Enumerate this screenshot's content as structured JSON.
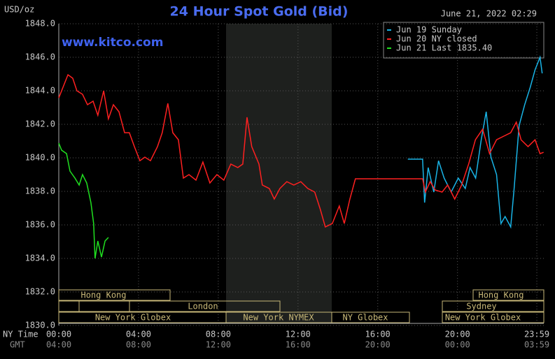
{
  "chart_data": {
    "type": "line",
    "title": "24 Hour Spot Gold (Bid)",
    "y_label": "USD/oz",
    "timestamp": "June 21, 2022 02:29",
    "watermark": "www.kitco.com",
    "x_label": "NY Time",
    "x2_label": "GMT",
    "xlim": [
      0,
      24.33
    ],
    "ylim": [
      1830,
      1848
    ],
    "yticks": [
      {
        "value": 1830,
        "label": "1830.0"
      },
      {
        "value": 1832,
        "label": "1832.0"
      },
      {
        "value": 1834,
        "label": "1834.0"
      },
      {
        "value": 1836,
        "label": "1836.0"
      },
      {
        "value": 1838,
        "label": "1838.0"
      },
      {
        "value": 1840,
        "label": "1840.0"
      },
      {
        "value": 1842,
        "label": "1842.0"
      },
      {
        "value": 1844,
        "label": "1844.0"
      },
      {
        "value": 1846,
        "label": "1846.0"
      },
      {
        "value": 1848,
        "label": "1848.0"
      }
    ],
    "xticks": [
      {
        "value": 0,
        "label": "00:00"
      },
      {
        "value": 4,
        "label": "04:00"
      },
      {
        "value": 8,
        "label": "08:00"
      },
      {
        "value": 12,
        "label": "12:00"
      },
      {
        "value": 16,
        "label": "16:00"
      },
      {
        "value": 20,
        "label": "20:00"
      },
      {
        "value": 23.98,
        "label": "23:59"
      }
    ],
    "x2tick_labels": [
      "04:00",
      "08:00",
      "12:00",
      "16:00",
      "20:00",
      "00:00",
      "03:59"
    ],
    "grid": true,
    "legend": "top-right",
    "sessions": [
      "Hong Kong",
      "London",
      "New York Globex",
      "New York NYMEX",
      "NY Globex",
      "Hong Kong",
      "Sydney",
      "New York Globex"
    ],
    "series": [
      {
        "name": "Jun 19 Sunday",
        "color": "#19b4e6",
        "x": [
          17.51,
          18.25,
          18.35,
          18.53,
          18.81,
          19.05,
          19.33,
          19.68,
          20.04,
          20.39,
          20.63,
          20.91,
          21.19,
          21.44,
          21.68,
          21.96,
          22.18,
          22.39,
          22.67,
          22.84,
          23.09,
          23.37,
          23.65,
          23.89,
          24.14,
          24.25
        ],
        "values": [
          1839.92,
          1839.92,
          1837.33,
          1839.42,
          1837.96,
          1839.83,
          1838.79,
          1837.96,
          1838.79,
          1838.17,
          1839.42,
          1838.79,
          1841.08,
          1842.75,
          1840.04,
          1839.0,
          1836.08,
          1836.5,
          1835.88,
          1838.17,
          1841.92,
          1843.17,
          1844.21,
          1845.25,
          1846.0,
          1845.04
        ]
      },
      {
        "name": "Jun 20 NY closed",
        "color": "#ff2020",
        "x": [
          0,
          0.21,
          0.46,
          0.7,
          0.91,
          1.19,
          1.44,
          1.72,
          1.96,
          2.25,
          2.49,
          2.74,
          3.02,
          3.3,
          3.54,
          3.79,
          4.07,
          4.32,
          4.6,
          4.95,
          5.19,
          5.47,
          5.72,
          6.0,
          6.25,
          6.53,
          6.88,
          7.23,
          7.58,
          7.93,
          8.28,
          8.63,
          8.98,
          9.23,
          9.44,
          9.68,
          10.04,
          10.21,
          10.56,
          10.81,
          11.09,
          11.44,
          11.79,
          12.14,
          12.49,
          12.84,
          13.12,
          13.37,
          13.72,
          14.07,
          14.32,
          14.6,
          14.88,
          18.25,
          18.39,
          18.63,
          18.88,
          19.23,
          19.51,
          19.86,
          20.21,
          20.56,
          20.9,
          21.26,
          21.61,
          21.96,
          22.32,
          22.67,
          22.95,
          23.19,
          23.54,
          23.89,
          24.14,
          24.32
        ],
        "values": [
          1843.58,
          1844.21,
          1844.96,
          1844.75,
          1844.0,
          1843.79,
          1843.17,
          1843.38,
          1842.54,
          1844.0,
          1842.33,
          1843.17,
          1842.75,
          1841.5,
          1841.5,
          1840.67,
          1839.83,
          1840.04,
          1839.83,
          1840.67,
          1841.5,
          1843.25,
          1841.5,
          1841.08,
          1838.79,
          1839.0,
          1838.67,
          1839.75,
          1838.5,
          1839.0,
          1838.67,
          1839.63,
          1839.42,
          1839.63,
          1842.42,
          1840.67,
          1839.63,
          1838.38,
          1838.17,
          1837.54,
          1838.17,
          1838.58,
          1838.38,
          1838.58,
          1838.17,
          1837.96,
          1836.92,
          1835.88,
          1836.08,
          1837.13,
          1836.08,
          1837.54,
          1838.75,
          1838.75,
          1837.96,
          1838.58,
          1838.08,
          1837.96,
          1838.38,
          1837.54,
          1838.38,
          1839.63,
          1841.08,
          1841.71,
          1840.25,
          1841.08,
          1841.29,
          1841.5,
          1842.13,
          1841.08,
          1840.67,
          1841.08,
          1840.25,
          1840.33
        ]
      },
      {
        "name": "Jun 21 Last 1835.40",
        "color": "#20e020",
        "x": [
          0,
          0.14,
          0.39,
          0.56,
          0.81,
          1.02,
          1.19,
          1.4,
          1.61,
          1.75,
          1.82,
          1.96,
          2.14,
          2.32,
          2.49
        ],
        "values": [
          1840.88,
          1840.46,
          1840.25,
          1839.21,
          1838.79,
          1838.38,
          1839.0,
          1838.5,
          1837.33,
          1836.08,
          1834.0,
          1835.04,
          1834.08,
          1835.04,
          1835.25
        ]
      }
    ]
  }
}
